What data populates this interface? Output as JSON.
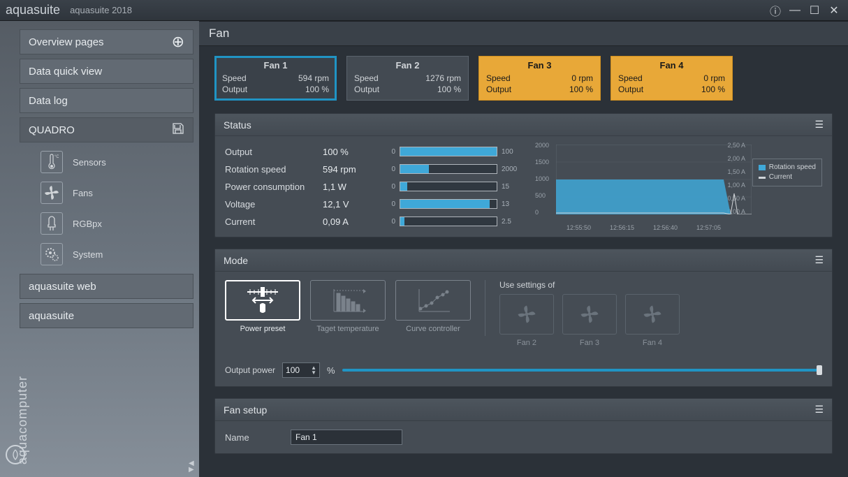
{
  "titlebar": {
    "app": "aquasuite",
    "sub": "aquasuite 2018"
  },
  "sidebar": {
    "items": [
      {
        "label": "Overview pages",
        "plus": true
      },
      {
        "label": "Data quick view"
      },
      {
        "label": "Data log"
      },
      {
        "label": "QUADRO",
        "save": true,
        "active": true
      }
    ],
    "sub": [
      {
        "label": "Sensors"
      },
      {
        "label": "Fans"
      },
      {
        "label": "RGBpx"
      },
      {
        "label": "System"
      }
    ],
    "lower": [
      {
        "label": "aquasuite web"
      },
      {
        "label": "aquasuite"
      }
    ],
    "brand": "aquacomputer"
  },
  "page_title": "Fan",
  "fans": [
    {
      "name": "Fan 1",
      "speed": "594 rpm",
      "output": "100 %",
      "selected": true,
      "warn": false
    },
    {
      "name": "Fan 2",
      "speed": "1276 rpm",
      "output": "100 %",
      "selected": false,
      "warn": false
    },
    {
      "name": "Fan 3",
      "speed": "0 rpm",
      "output": "100 %",
      "selected": false,
      "warn": true
    },
    {
      "name": "Fan 4",
      "speed": "0 rpm",
      "output": "100 %",
      "selected": false,
      "warn": true
    }
  ],
  "fan_labels": {
    "speed": "Speed",
    "output": "Output"
  },
  "colors": {
    "accent": "#2094c4",
    "warn_bg": "#e8a838",
    "bar_fill": "#3fa8d8",
    "panel_bg": "#454c54"
  },
  "status": {
    "title": "Status",
    "rows": [
      {
        "label": "Output",
        "value": "100 %",
        "min": "0",
        "max": "100",
        "fill_pct": 100
      },
      {
        "label": "Rotation speed",
        "value": "594 rpm",
        "min": "0",
        "max": "2000",
        "fill_pct": 30
      },
      {
        "label": "Power consumption",
        "value": "1,1 W",
        "min": "0",
        "max": "15",
        "fill_pct": 7
      },
      {
        "label": "Voltage",
        "value": "12,1 V",
        "min": "0",
        "max": "13",
        "fill_pct": 93
      },
      {
        "label": "Current",
        "value": "0,09 A",
        "min": "0",
        "max": "2.5",
        "fill_pct": 4
      }
    ],
    "chart": {
      "type": "line-area",
      "y_left": {
        "ticks": [
          "2000",
          "1500",
          "1000",
          "500",
          "0"
        ],
        "lim": [
          0,
          2000
        ]
      },
      "y_right": {
        "ticks": [
          "2,50 A",
          "2,00 A",
          "1,50 A",
          "1,00 A",
          "0,50 A",
          "0,00 A"
        ],
        "lim": [
          0,
          2.5
        ]
      },
      "x_ticks": [
        "12:55:50",
        "12:56:15",
        "12:56:40",
        "12:57:05"
      ],
      "series": [
        {
          "name": "Rotation speed",
          "color": "#3fa8d8",
          "fill": true,
          "points": [
            [
              0,
              1000
            ],
            [
              240,
              1000
            ],
            [
              250,
              0
            ],
            [
              280,
              0
            ]
          ]
        },
        {
          "name": "Current",
          "color": "#d0d4d8",
          "fill": false,
          "points": [
            [
              0,
              40
            ],
            [
              240,
              40
            ],
            [
              250,
              0
            ],
            [
              255,
              600
            ],
            [
              260,
              0
            ],
            [
              280,
              0
            ]
          ]
        }
      ],
      "legend": [
        {
          "label": "Rotation speed",
          "color": "#3fa8d8"
        },
        {
          "label": "Current",
          "color": "#d0d4d8"
        }
      ],
      "grid_color": "#5a636c",
      "bg": "#454c54"
    }
  },
  "mode": {
    "title": "Mode",
    "options": [
      {
        "label": "Power preset",
        "selected": true
      },
      {
        "label": "Taget temperature",
        "selected": false
      },
      {
        "label": "Curve controller",
        "selected": false
      }
    ],
    "use_label": "Use settings of",
    "use_fans": [
      {
        "label": "Fan 2"
      },
      {
        "label": "Fan 3"
      },
      {
        "label": "Fan 4"
      }
    ],
    "output_power": {
      "label": "Output power",
      "value": "100",
      "unit": "%",
      "slider_pct": 100
    }
  },
  "fan_setup": {
    "title": "Fan setup",
    "name_label": "Name",
    "name_value": "Fan 1"
  }
}
